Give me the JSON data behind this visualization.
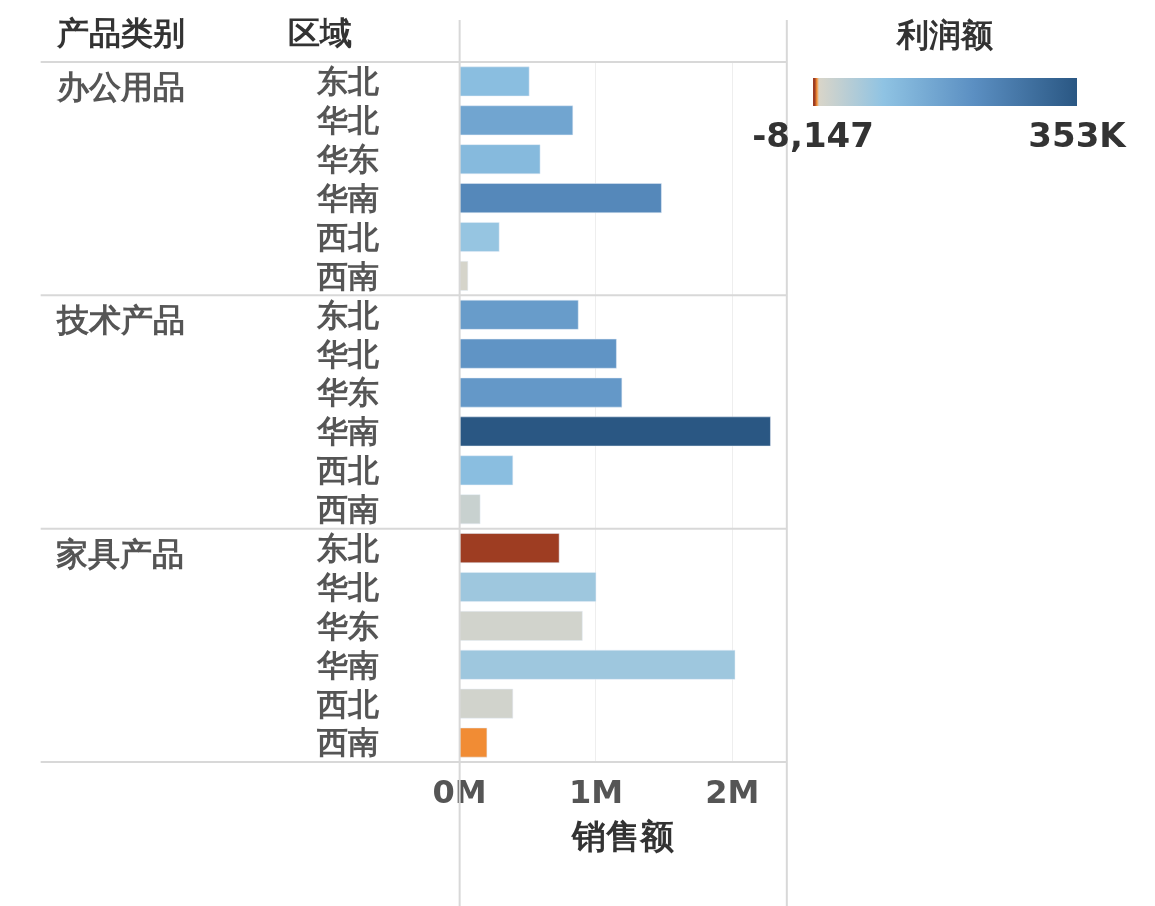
{
  "chart_data": {
    "type": "bar",
    "orientation": "horizontal",
    "categories": [
      "东北",
      "华北",
      "华东",
      "华南",
      "西北",
      "西南",
      "东北",
      "华北",
      "华东",
      "华南",
      "西北",
      "西南",
      "东北",
      "华北",
      "华东",
      "华南",
      "西北",
      "西南"
    ],
    "values": [
      0.51,
      0.83,
      0.59,
      1.48,
      0.29,
      0.06,
      0.87,
      1.15,
      1.19,
      2.28,
      0.39,
      0.15,
      0.73,
      1.0,
      0.9,
      2.02,
      0.39,
      0.2
    ],
    "cvalues": [
      100000,
      160000,
      110000,
      230000,
      80000,
      5000,
      180000,
      200000,
      190000,
      353000,
      100000,
      20000,
      -8147,
      70000,
      10000,
      70000,
      10000,
      -3000
    ],
    "xlim": [
      0,
      2.4
    ],
    "xticks": [
      {
        "value": 0,
        "label": "0M"
      },
      {
        "value": 1,
        "label": "1M"
      },
      {
        "value": 2,
        "label": "2M"
      }
    ],
    "xlabel": "销售额",
    "grid": "x",
    "clabel": "利润额",
    "clim": [
      -8147,
      353000
    ],
    "cticks": [
      {
        "value": -8147,
        "label": "-8,147"
      },
      {
        "value": 353000,
        "label": "353K"
      }
    ],
    "annotations": [
      "产品类别",
      "区域",
      "办公用品",
      "技术产品",
      "家具产品"
    ]
  }
}
